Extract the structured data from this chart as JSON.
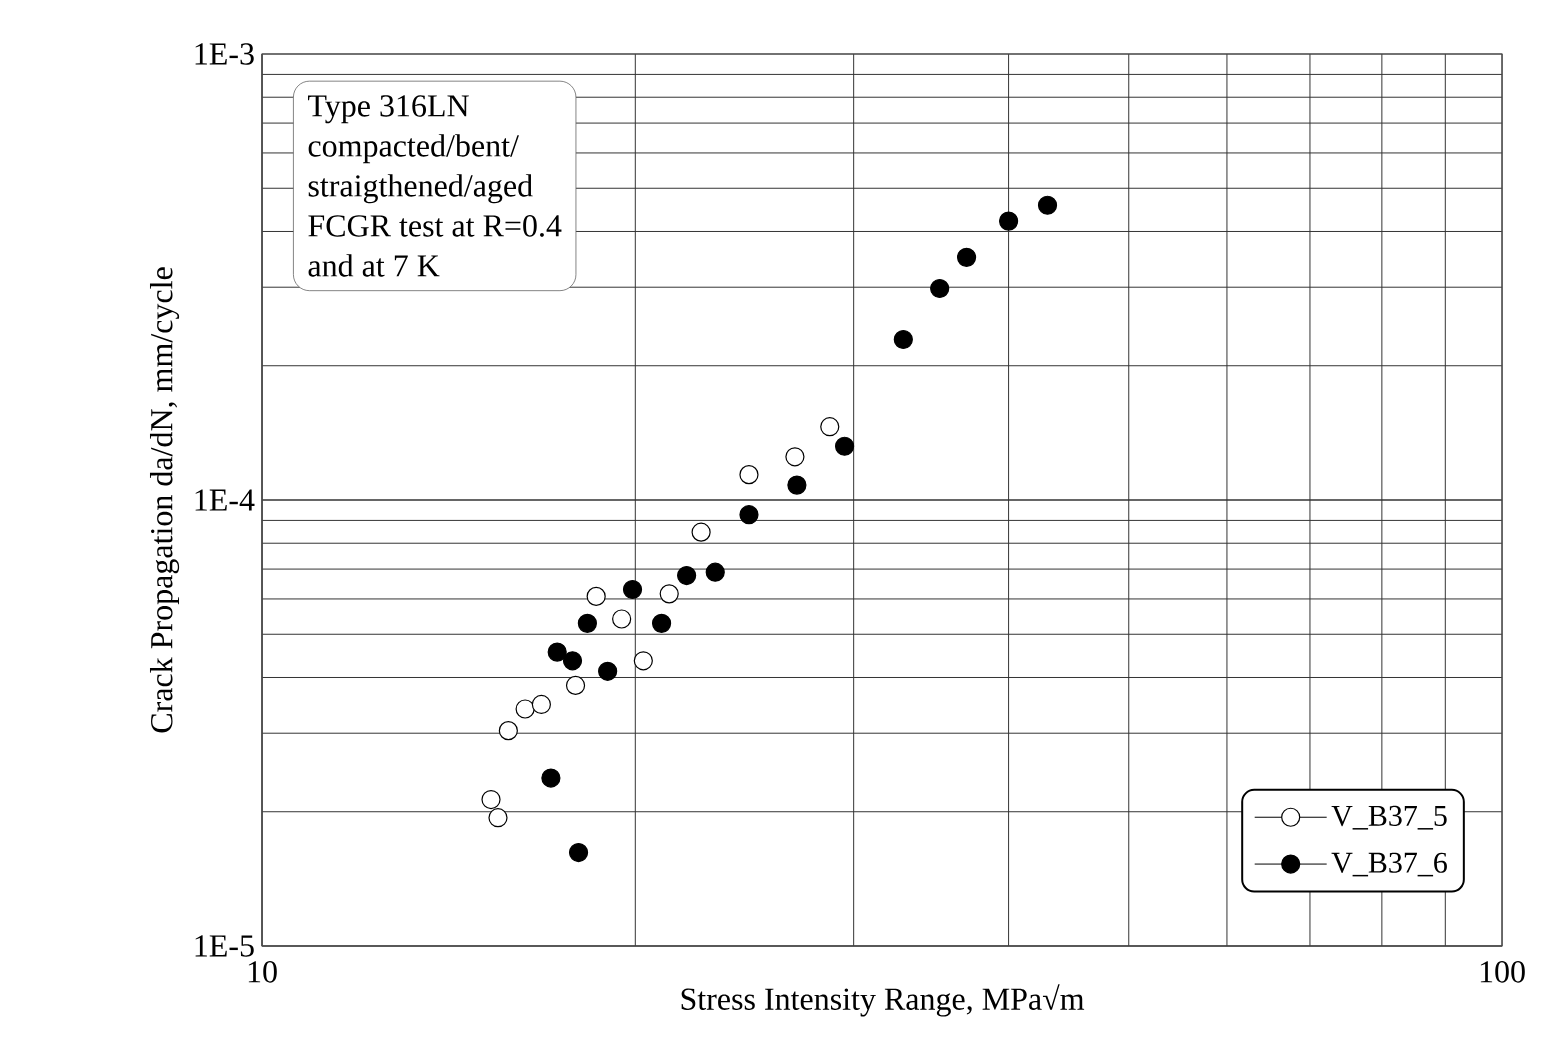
{
  "chart_data": {
    "type": "scatter",
    "xlabel": "Stress Intensity Range, MPa√m",
    "ylabel": "Crack Propagation da/dN, mm/cycle",
    "annotations": [
      "Type 316LN",
      "compacted/bent/",
      "straigthened/aged",
      "FCGR test  at R=0.4",
      "and at 7 K"
    ],
    "log": "xy",
    "grid": true,
    "legend": "bottom right",
    "xlim": [
      10,
      100
    ],
    "xticks": [
      10,
      100
    ],
    "ylim": [
      1e-05,
      0.001
    ],
    "yticks": [
      {
        "value": 1e-05,
        "label": "1E-5"
      },
      {
        "value": 0.0001,
        "label": "1E-4"
      },
      {
        "value": 0.001,
        "label": "1E-3"
      }
    ],
    "series": [
      {
        "name": "V_B37_5",
        "color": "#ffffff",
        "x": [
          15.3,
          15.5,
          15.8,
          16.3,
          16.8,
          17.9,
          18.6,
          19.5,
          20.3,
          21.3,
          22.6,
          24.7,
          26.9,
          28.7
        ],
        "values": [
          2.13e-05,
          1.94e-05,
          3.04e-05,
          3.4e-05,
          3.48e-05,
          3.84e-05,
          6.08e-05,
          5.41e-05,
          4.36e-05,
          6.16e-05,
          8.47e-05,
          0.000114,
          0.000125,
          0.000146
        ]
      },
      {
        "name": "V_B37_6",
        "color": "#000000",
        "x": [
          17.1,
          18.0,
          17.3,
          17.8,
          18.3,
          19.0,
          19.9,
          21.0,
          22.0,
          23.2,
          24.7,
          27.0,
          29.5,
          32.9,
          35.2,
          37.0,
          40.0,
          43.0
        ],
        "values": [
          2.38e-05,
          1.62e-05,
          4.56e-05,
          4.36e-05,
          5.29e-05,
          4.13e-05,
          6.3e-05,
          5.29e-05,
          6.77e-05,
          6.89e-05,
          9.27e-05,
          0.000108,
          0.000132,
          0.000229,
          0.000298,
          0.00035,
          0.000422,
          0.000458
        ]
      }
    ]
  }
}
